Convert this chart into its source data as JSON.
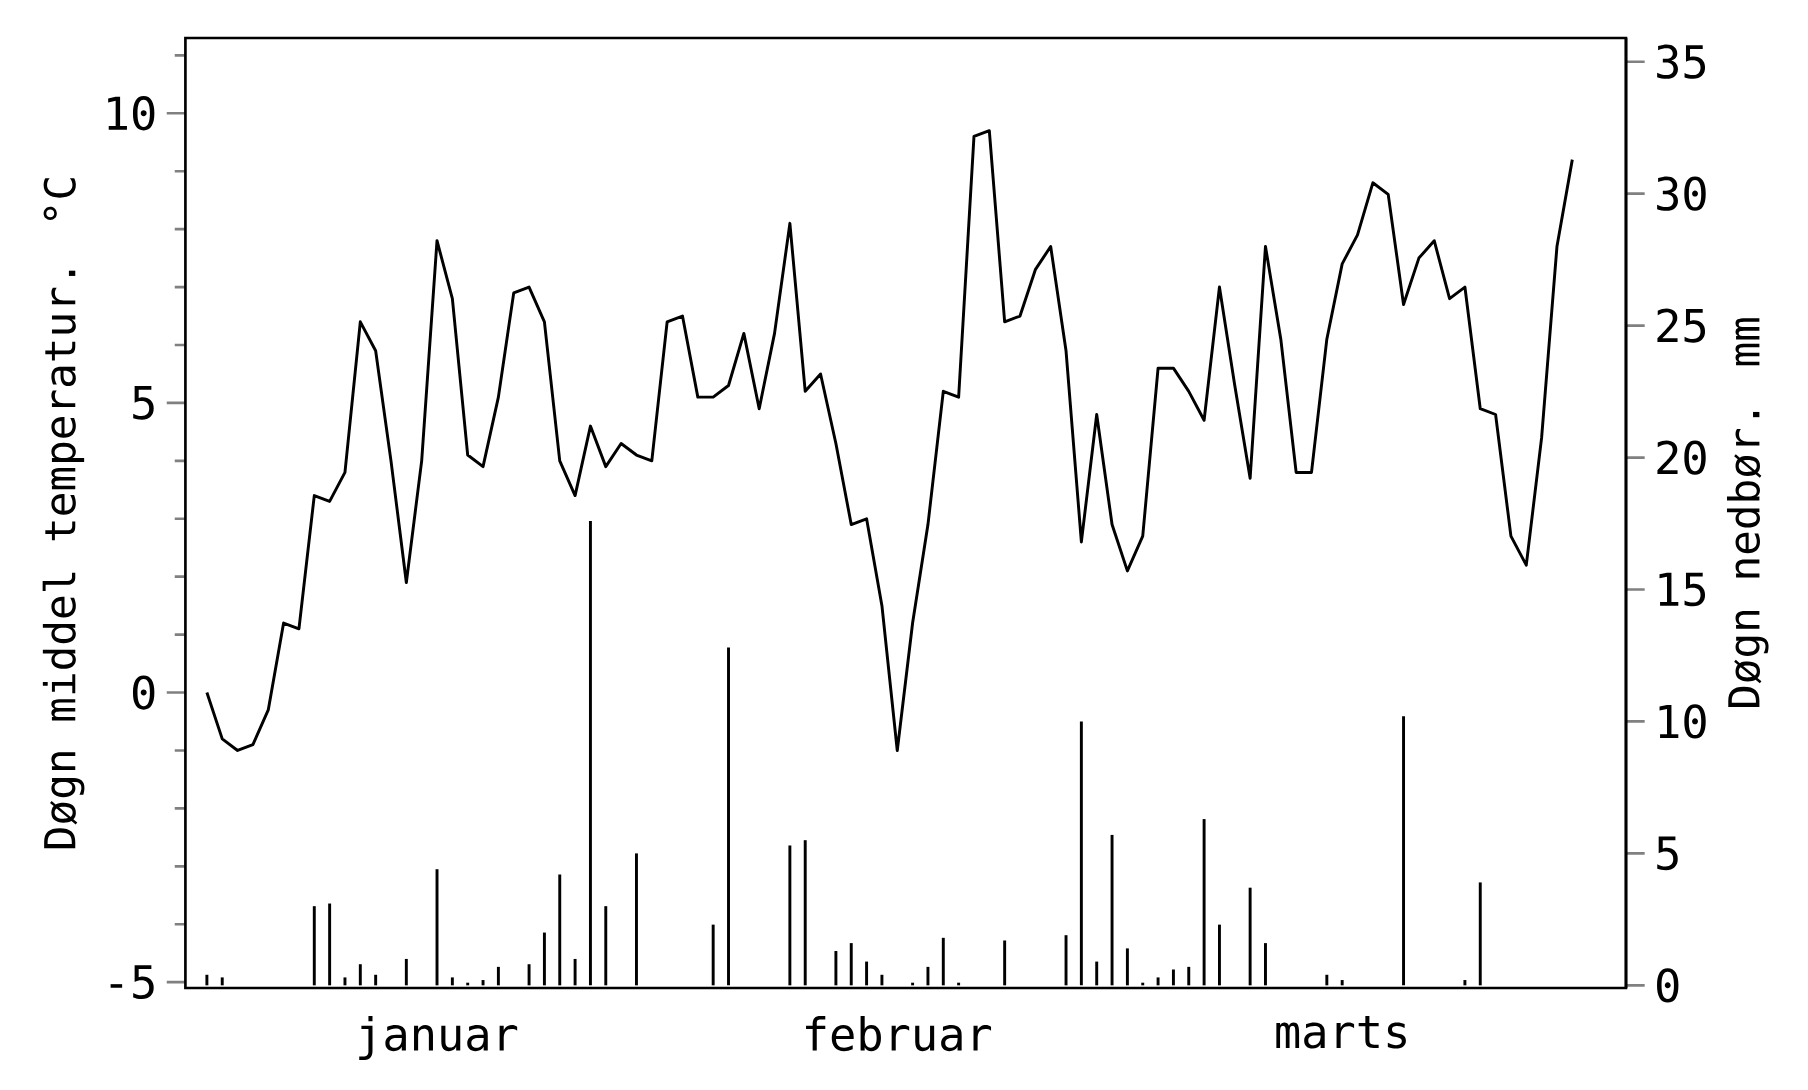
{
  "chart_data": {
    "type": "line",
    "ylabel": "Døgn middel temperatur. °C",
    "y2label": "Døgn nedbør. mm",
    "categories": [
      null,
      null,
      null,
      null,
      null,
      null,
      null,
      null,
      null,
      null,
      null,
      null,
      null,
      null,
      null,
      "januar",
      null,
      null,
      null,
      null,
      null,
      null,
      null,
      null,
      null,
      null,
      null,
      null,
      null,
      null,
      null,
      null,
      null,
      null,
      null,
      null,
      null,
      null,
      null,
      null,
      null,
      null,
      null,
      null,
      null,
      "februar",
      null,
      null,
      null,
      null,
      null,
      null,
      null,
      null,
      null,
      null,
      null,
      null,
      null,
      null,
      null,
      null,
      null,
      null,
      null,
      null,
      null,
      null,
      null,
      null,
      null,
      null,
      null,
      null,
      "marts",
      null,
      null,
      null,
      null,
      null,
      null,
      null,
      null,
      null,
      null,
      null,
      null,
      null,
      null,
      null
    ],
    "ylim": [
      -5.1,
      11.3
    ],
    "yticks": [
      -5,
      {
        "value": -4,
        "label": null
      },
      {
        "value": -3,
        "label": null
      },
      {
        "value": -2,
        "label": null
      },
      {
        "value": -1,
        "label": null
      },
      0,
      {
        "value": 1,
        "label": null
      },
      {
        "value": 2,
        "label": null
      },
      {
        "value": 3,
        "label": null
      },
      {
        "value": 4,
        "label": null
      },
      5,
      {
        "value": 6,
        "label": null
      },
      {
        "value": 7,
        "label": null
      },
      {
        "value": 8,
        "label": null
      },
      {
        "value": 9,
        "label": null
      },
      10,
      {
        "value": 11,
        "label": null
      }
    ],
    "y2lim": [
      -0.1,
      35.9
    ],
    "y2ticks": [
      0,
      5,
      10,
      15,
      20,
      25,
      30,
      35
    ],
    "series": [
      {
        "type": "bar",
        "axis": "y2",
        "color": "#000000",
        "values": [
          0.4,
          0.3,
          0,
          0,
          0,
          0,
          0,
          3.0,
          3.1,
          0.3,
          0.8,
          0.4,
          0,
          1.0,
          0,
          4.4,
          0.3,
          0.1,
          0.2,
          0.7,
          0,
          0.8,
          2.0,
          4.2,
          1.0,
          17.6,
          3.0,
          0,
          5.0,
          0,
          0,
          0,
          0,
          2.3,
          12.8,
          0,
          0,
          0,
          5.3,
          5.5,
          0,
          1.3,
          1.6,
          0.9,
          0.4,
          0,
          0.1,
          0.7,
          1.8,
          0.1,
          0,
          0,
          1.7,
          0,
          0,
          0,
          1.9,
          10.0,
          0.9,
          5.7,
          1.4,
          0.1,
          0.3,
          0.6,
          0.7,
          6.3,
          2.3,
          0,
          3.7,
          1.6,
          0,
          0,
          0,
          0.4,
          0.2,
          0,
          0,
          0,
          10.2,
          0,
          0,
          0,
          0.2,
          3.9,
          0,
          0,
          0,
          0,
          0,
          0
        ]
      },
      {
        "axis": "y",
        "color": "#000000",
        "values": [
          0.0,
          -0.8,
          -1.0,
          -0.9,
          -0.3,
          1.2,
          1.1,
          3.4,
          3.3,
          3.8,
          6.4,
          5.9,
          4.0,
          1.9,
          4.0,
          7.8,
          6.8,
          4.1,
          3.9,
          5.1,
          6.9,
          7.0,
          6.4,
          4.0,
          3.4,
          4.6,
          3.9,
          4.3,
          4.1,
          4.0,
          6.4,
          6.5,
          5.1,
          5.1,
          5.3,
          6.2,
          4.9,
          6.2,
          8.1,
          5.2,
          5.5,
          4.3,
          2.9,
          3.0,
          1.5,
          -1.0,
          1.2,
          2.9,
          5.2,
          5.1,
          9.6,
          9.7,
          6.4,
          6.5,
          7.3,
          7.7,
          5.9,
          2.6,
          4.8,
          2.9,
          2.1,
          2.7,
          5.6,
          5.6,
          5.2,
          4.7,
          7.0,
          5.3,
          3.7,
          7.7,
          6.1,
          3.8,
          3.8,
          6.1,
          7.4,
          7.9,
          8.8,
          8.6,
          6.7,
          7.5,
          7.8,
          6.8,
          7.0,
          4.9,
          4.8,
          2.7,
          2.2,
          4.4,
          7.7,
          9.2
        ]
      }
    ]
  }
}
